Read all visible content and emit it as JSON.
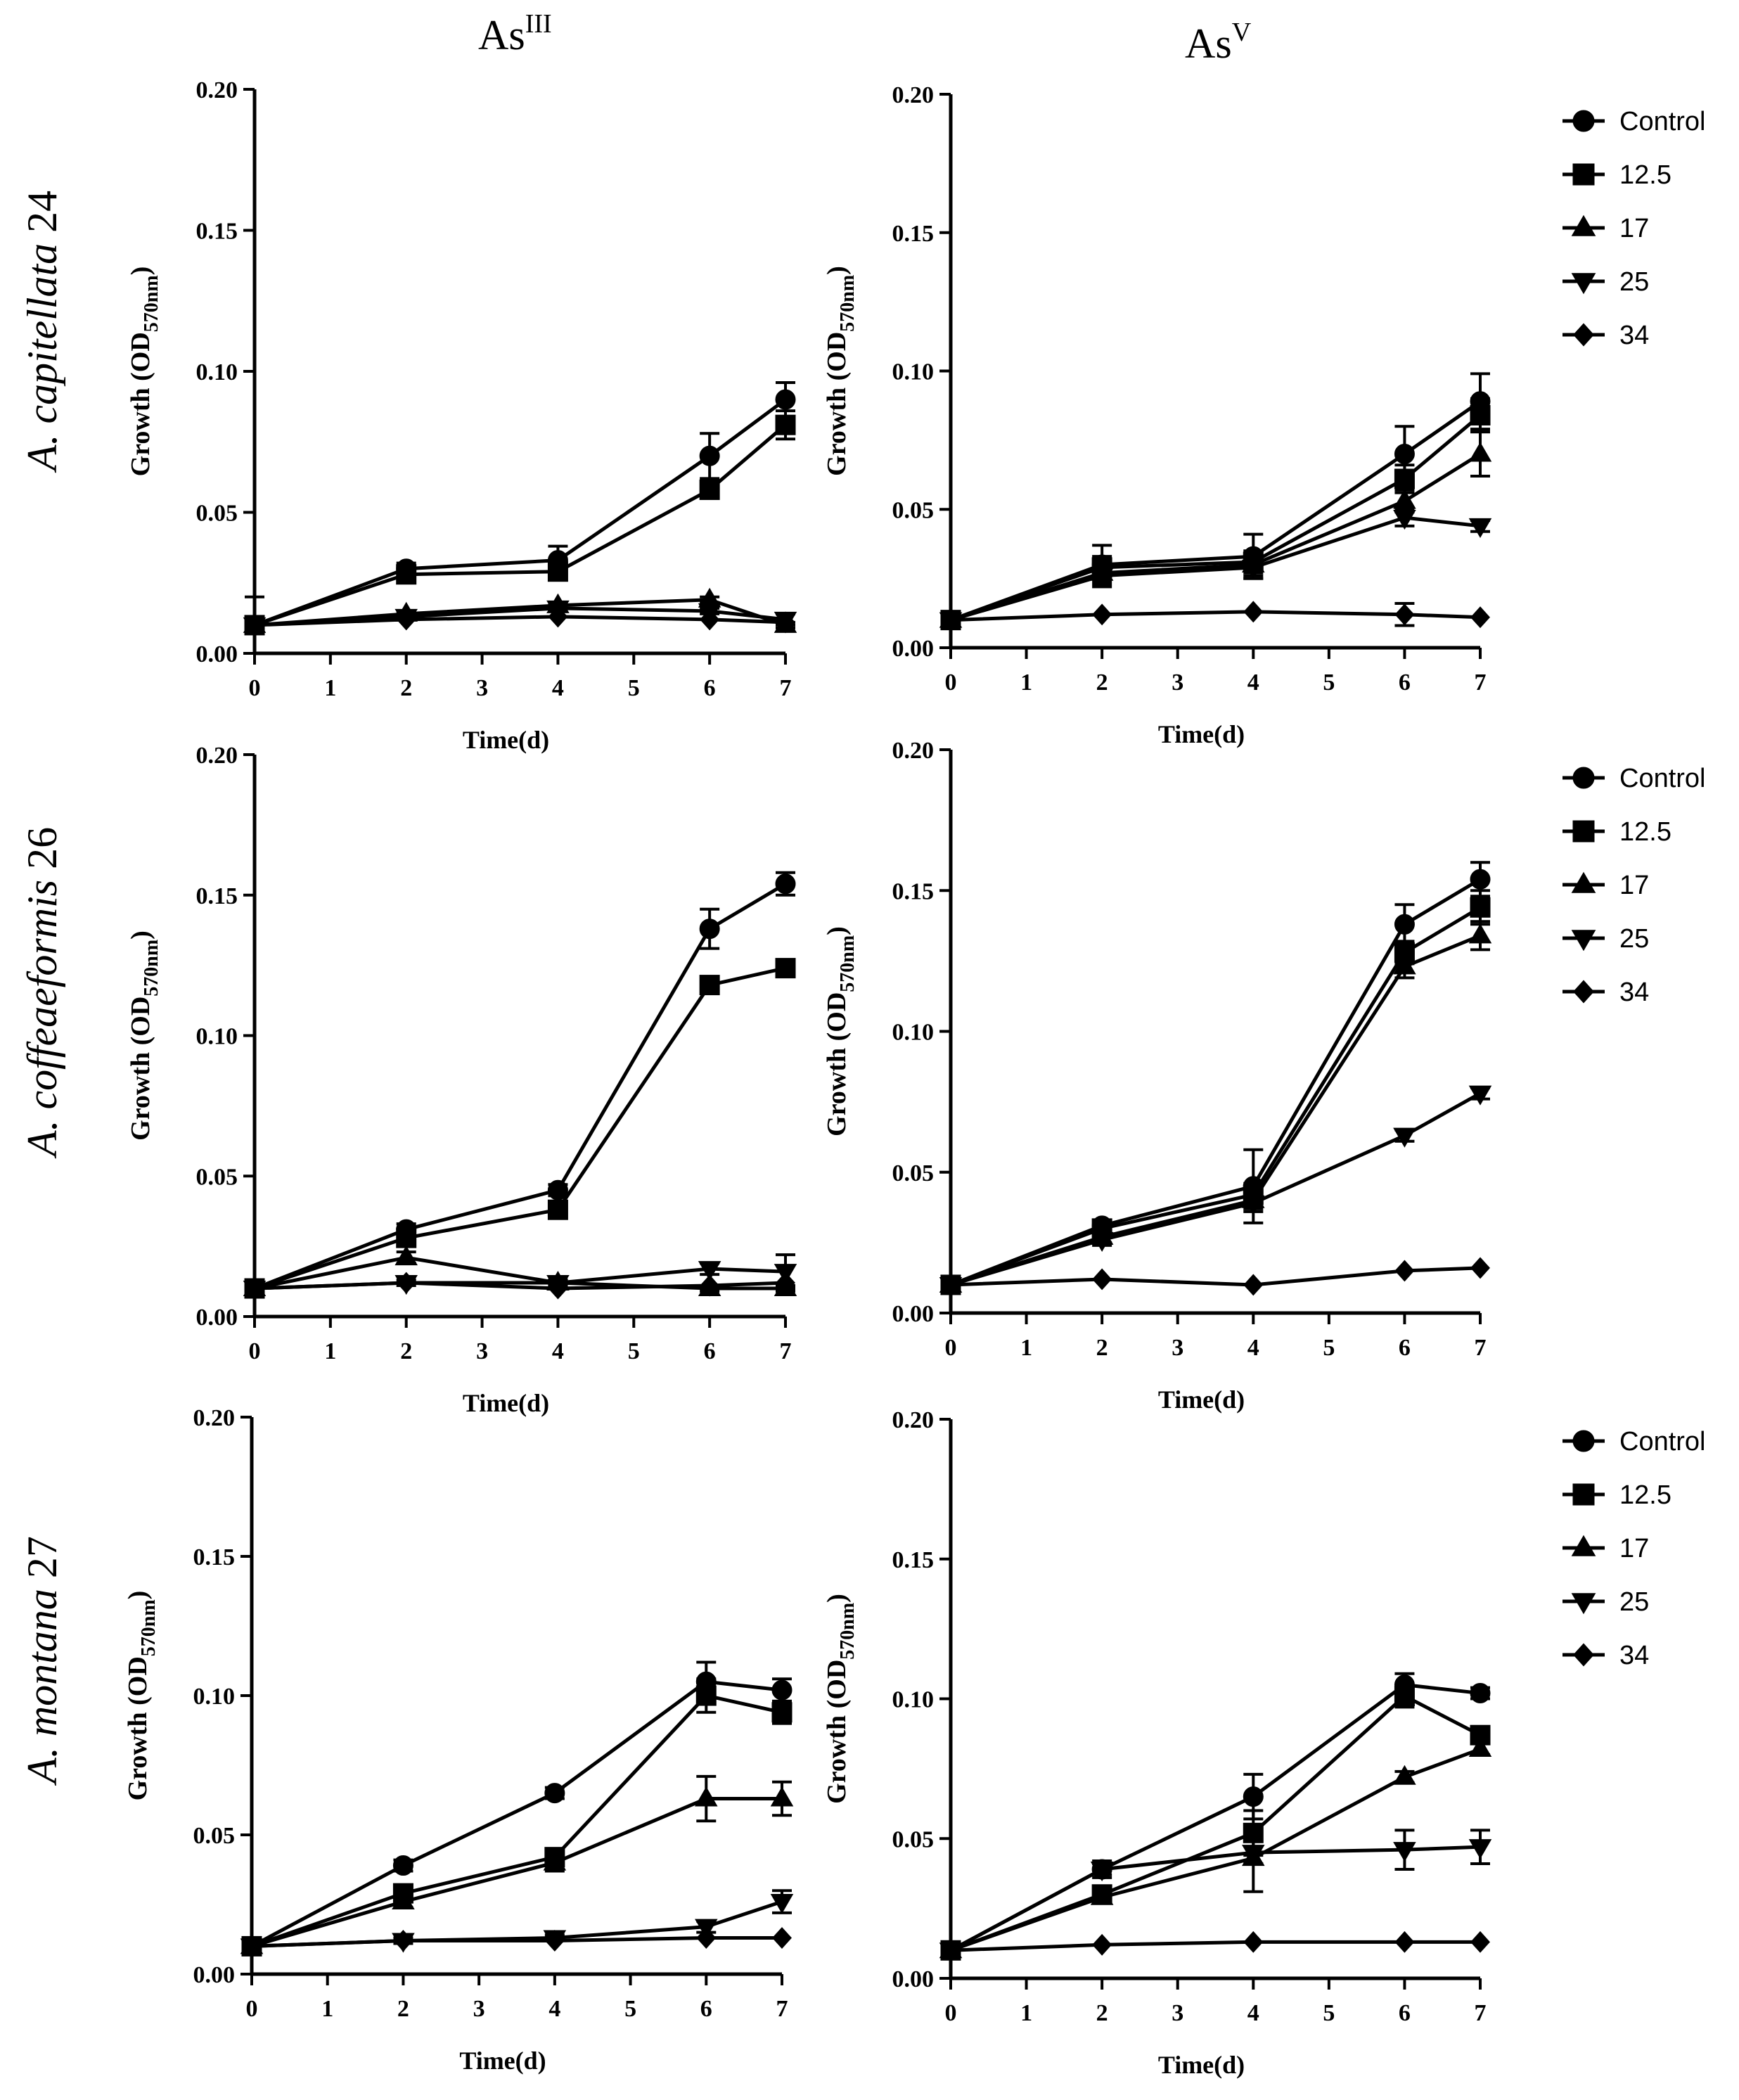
{
  "figure": {
    "col_titles": [
      {
        "base": "As",
        "sup": "III"
      },
      {
        "base": "As",
        "sup": "V"
      }
    ],
    "row_labels": [
      {
        "name": "A. capitellata",
        "num": "24"
      },
      {
        "name": "A. coffeaeformis",
        "num": "26"
      },
      {
        "name": "A. montana",
        "num": "27"
      }
    ],
    "ylabel": {
      "prefix": "Growth (OD",
      "sub": "570nm",
      "suffix": ")"
    },
    "xlabel": "Time(d)",
    "legend": [
      "Control",
      "12.5",
      "17",
      "25",
      "34"
    ],
    "colors": {
      "line": "#000000",
      "background": "#ffffff"
    }
  },
  "chart_data": [
    {
      "type": "line",
      "panel": "A. capitellata 24 - AsIII",
      "x": [
        0,
        2,
        4,
        6,
        7
      ],
      "xlim": [
        0,
        7
      ],
      "ylim": [
        0,
        0.2
      ],
      "xticks": [
        "0",
        "1",
        "2",
        "3",
        "4",
        "5",
        "6",
        "7"
      ],
      "yticks": [
        "0.00",
        "0.05",
        "0.10",
        "0.15",
        "0.20"
      ],
      "xlabel": "Time(d)",
      "ylabel": "Growth (OD570nm)",
      "series": [
        {
          "name": "Control",
          "marker": "circle",
          "values": [
            0.01,
            0.03,
            0.033,
            0.07,
            0.09
          ],
          "err": [
            0.01,
            0.002,
            0.005,
            0.008,
            0.006
          ]
        },
        {
          "name": "12.5",
          "marker": "square",
          "values": [
            0.01,
            0.028,
            0.029,
            0.058,
            0.081
          ],
          "err": [
            0,
            0.002,
            0.003,
            0.003,
            0.005
          ]
        },
        {
          "name": "17",
          "marker": "triangle",
          "values": [
            0.01,
            0.014,
            0.017,
            0.019,
            0.01
          ],
          "err": [
            0,
            0.001,
            0.001,
            0.001,
            0.001
          ]
        },
        {
          "name": "25",
          "marker": "tri-down",
          "values": [
            0.01,
            0.013,
            0.016,
            0.015,
            0.012
          ],
          "err": [
            0,
            0.001,
            0.001,
            0.001,
            0.002
          ]
        },
        {
          "name": "34",
          "marker": "diamond",
          "values": [
            0.01,
            0.012,
            0.013,
            0.012,
            0.011
          ],
          "err": [
            0,
            0,
            0,
            0,
            0
          ]
        }
      ]
    },
    {
      "type": "line",
      "panel": "A. capitellata 24 - AsV",
      "x": [
        0,
        2,
        4,
        6,
        7
      ],
      "xlim": [
        0,
        7
      ],
      "ylim": [
        0,
        0.2
      ],
      "xticks": [
        "0",
        "1",
        "2",
        "3",
        "4",
        "5",
        "6",
        "7"
      ],
      "yticks": [
        "0.00",
        "0.05",
        "0.10",
        "0.15",
        "0.20"
      ],
      "xlabel": "Time(d)",
      "ylabel": "Growth (OD570nm)",
      "series": [
        {
          "name": "Control",
          "marker": "circle",
          "values": [
            0.01,
            0.03,
            0.033,
            0.07,
            0.089
          ],
          "err": [
            0,
            0.007,
            0.008,
            0.01,
            0.01
          ]
        },
        {
          "name": "12.5",
          "marker": "square",
          "values": [
            0.01,
            0.029,
            0.031,
            0.061,
            0.084
          ],
          "err": [
            0,
            0.004,
            0.004,
            0.005,
            0.006
          ]
        },
        {
          "name": "17",
          "marker": "triangle",
          "values": [
            0.01,
            0.027,
            0.03,
            0.053,
            0.07
          ],
          "err": [
            0,
            0.003,
            0.004,
            0.004,
            0.008
          ]
        },
        {
          "name": "25",
          "marker": "tri-down",
          "values": [
            0.01,
            0.026,
            0.029,
            0.047,
            0.044
          ],
          "err": [
            0,
            0.004,
            0.004,
            0.003,
            0.002
          ]
        },
        {
          "name": "34",
          "marker": "diamond",
          "values": [
            0.01,
            0.012,
            0.013,
            0.012,
            0.011
          ],
          "err": [
            0,
            0,
            0,
            0.004,
            0
          ]
        }
      ]
    },
    {
      "type": "line",
      "panel": "A. coffeaeformis 26 - AsIII",
      "x": [
        0,
        2,
        4,
        6,
        7
      ],
      "xlim": [
        0,
        7
      ],
      "ylim": [
        0,
        0.2
      ],
      "xticks": [
        "0",
        "1",
        "2",
        "3",
        "4",
        "5",
        "6",
        "7"
      ],
      "yticks": [
        "0.00",
        "0.05",
        "0.10",
        "0.15",
        "0.20"
      ],
      "xlabel": "Time(d)",
      "ylabel": "Growth (OD570nm)",
      "series": [
        {
          "name": "Control",
          "marker": "circle",
          "values": [
            0.01,
            0.031,
            0.045,
            0.138,
            0.154
          ],
          "err": [
            0,
            0.002,
            0.002,
            0.007,
            0.004
          ]
        },
        {
          "name": "12.5",
          "marker": "square",
          "values": [
            0.01,
            0.028,
            0.038,
            0.118,
            0.124
          ],
          "err": [
            0,
            0.002,
            0.002,
            0.002,
            0.002
          ]
        },
        {
          "name": "17",
          "marker": "triangle",
          "values": [
            0.01,
            0.021,
            0.012,
            0.01,
            0.01
          ],
          "err": [
            0,
            0.002,
            0.001,
            0.001,
            0.001
          ]
        },
        {
          "name": "25",
          "marker": "tri-down",
          "values": [
            0.01,
            0.012,
            0.012,
            0.017,
            0.016
          ],
          "err": [
            0,
            0.001,
            0.001,
            0.002,
            0.006
          ]
        },
        {
          "name": "34",
          "marker": "diamond",
          "values": [
            0.01,
            0.012,
            0.01,
            0.011,
            0.012
          ],
          "err": [
            0,
            0,
            0,
            0,
            0
          ]
        }
      ]
    },
    {
      "type": "line",
      "panel": "A. coffeaeformis 26 - AsV",
      "x": [
        0,
        2,
        4,
        6,
        7
      ],
      "xlim": [
        0,
        7
      ],
      "ylim": [
        0,
        0.2
      ],
      "xticks": [
        "0",
        "1",
        "2",
        "3",
        "4",
        "5",
        "6",
        "7"
      ],
      "yticks": [
        "0.00",
        "0.05",
        "0.10",
        "0.15",
        "0.20"
      ],
      "xlabel": "Time(d)",
      "ylabel": "Growth (OD570nm)",
      "series": [
        {
          "name": "Control",
          "marker": "circle",
          "values": [
            0.01,
            0.031,
            0.045,
            0.138,
            0.154
          ],
          "err": [
            0,
            0.002,
            0.013,
            0.007,
            0.006
          ]
        },
        {
          "name": "12.5",
          "marker": "square",
          "values": [
            0.01,
            0.03,
            0.042,
            0.128,
            0.144
          ],
          "err": [
            0,
            0.002,
            0.004,
            0.004,
            0.006
          ]
        },
        {
          "name": "17",
          "marker": "triangle",
          "values": [
            0.01,
            0.027,
            0.04,
            0.123,
            0.134
          ],
          "err": [
            0,
            0.002,
            0.004,
            0.004,
            0.005
          ]
        },
        {
          "name": "25",
          "marker": "tri-down",
          "values": [
            0.01,
            0.026,
            0.039,
            0.063,
            0.078
          ],
          "err": [
            0,
            0.002,
            0.002,
            0.002,
            0.002
          ]
        },
        {
          "name": "34",
          "marker": "diamond",
          "values": [
            0.01,
            0.012,
            0.01,
            0.015,
            0.016
          ],
          "err": [
            0,
            0,
            0,
            0,
            0
          ]
        }
      ]
    },
    {
      "type": "line",
      "panel": "A. montana 27 - AsIII",
      "x": [
        0,
        2,
        4,
        6,
        7
      ],
      "xlim": [
        0,
        7
      ],
      "ylim": [
        0,
        0.2
      ],
      "xticks": [
        "0",
        "1",
        "2",
        "3",
        "4",
        "5",
        "6",
        "7"
      ],
      "yticks": [
        "0.00",
        "0.05",
        "0.10",
        "0.15",
        "0.20"
      ],
      "xlabel": "Time(d)",
      "ylabel": "Growth (OD570nm)",
      "series": [
        {
          "name": "Control",
          "marker": "circle",
          "values": [
            0.01,
            0.039,
            0.065,
            0.105,
            0.102
          ],
          "err": [
            0,
            0.002,
            0.002,
            0.007,
            0.004
          ]
        },
        {
          "name": "12.5",
          "marker": "square",
          "values": [
            0.01,
            0.029,
            0.042,
            0.1,
            0.094
          ],
          "err": [
            0,
            0.002,
            0.003,
            0.006,
            0.004
          ]
        },
        {
          "name": "17",
          "marker": "triangle",
          "values": [
            0.01,
            0.026,
            0.04,
            0.063,
            0.063
          ],
          "err": [
            0,
            0.002,
            0.003,
            0.008,
            0.006
          ]
        },
        {
          "name": "25",
          "marker": "tri-down",
          "values": [
            0.01,
            0.012,
            0.013,
            0.017,
            0.026
          ],
          "err": [
            0,
            0.001,
            0.001,
            0.002,
            0.004
          ]
        },
        {
          "name": "34",
          "marker": "diamond",
          "values": [
            0.01,
            0.012,
            0.012,
            0.013,
            0.013
          ],
          "err": [
            0,
            0,
            0,
            0,
            0
          ]
        }
      ]
    },
    {
      "type": "line",
      "panel": "A. montana 27 - AsV",
      "x": [
        0,
        2,
        4,
        6,
        7
      ],
      "xlim": [
        0,
        7
      ],
      "ylim": [
        0,
        0.2
      ],
      "xticks": [
        "0",
        "1",
        "2",
        "3",
        "4",
        "5",
        "6",
        "7"
      ],
      "yticks": [
        "0.00",
        "0.05",
        "0.10",
        "0.15",
        "0.20"
      ],
      "xlabel": "Time(d)",
      "ylabel": "Growth (OD570nm)",
      "series": [
        {
          "name": "Control",
          "marker": "circle",
          "values": [
            0.01,
            0.039,
            0.065,
            0.105,
            0.102
          ],
          "err": [
            0,
            0.003,
            0.008,
            0.004,
            0.002
          ]
        },
        {
          "name": "12.5",
          "marker": "square",
          "values": [
            0.01,
            0.03,
            0.052,
            0.101,
            0.087
          ],
          "err": [
            0,
            0.003,
            0.008,
            0.004,
            0.003
          ]
        },
        {
          "name": "17",
          "marker": "triangle",
          "values": [
            0.01,
            0.029,
            0.043,
            0.072,
            0.082
          ],
          "err": [
            0,
            0.002,
            0.012,
            0.002,
            0.002
          ]
        },
        {
          "name": "25",
          "marker": "tri-down",
          "values": [
            0.01,
            0.039,
            0.045,
            0.046,
            0.047
          ],
          "err": [
            0,
            0.002,
            0.004,
            0.007,
            0.006
          ]
        },
        {
          "name": "34",
          "marker": "diamond",
          "values": [
            0.01,
            0.012,
            0.013,
            0.013,
            0.013
          ],
          "err": [
            0,
            0,
            0,
            0,
            0
          ]
        }
      ]
    }
  ]
}
